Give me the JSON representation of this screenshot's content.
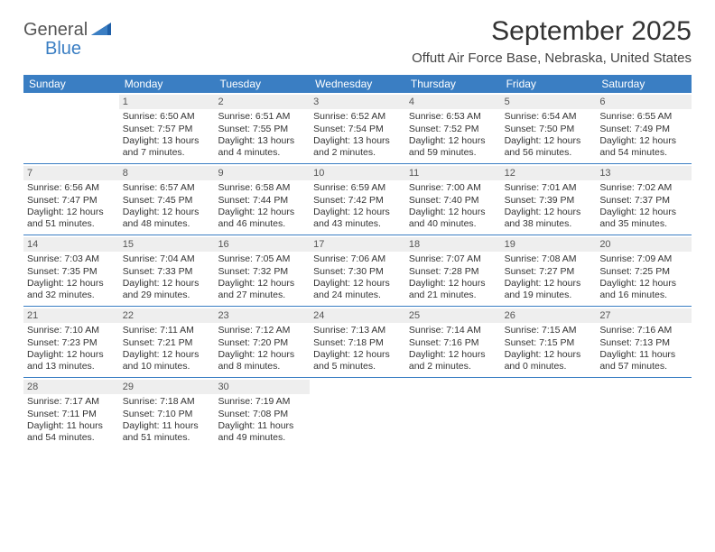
{
  "brand": {
    "word1": "General",
    "word2": "Blue",
    "word1_color": "#555555",
    "word2_color": "#3a7ec3"
  },
  "title": "September 2025",
  "location": "Offutt Air Force Base, Nebraska, United States",
  "colors": {
    "header_bg": "#3a7ec3",
    "header_text": "#ffffff",
    "daynum_bg": "#eeeeee",
    "daynum_text": "#555555",
    "body_text": "#333333",
    "rule": "#3a7ec3",
    "page_bg": "#ffffff"
  },
  "weekday_labels": [
    "Sunday",
    "Monday",
    "Tuesday",
    "Wednesday",
    "Thursday",
    "Friday",
    "Saturday"
  ],
  "weeks": [
    [
      {
        "n": "",
        "lines": []
      },
      {
        "n": "1",
        "lines": [
          "Sunrise: 6:50 AM",
          "Sunset: 7:57 PM",
          "Daylight: 13 hours",
          "and 7 minutes."
        ]
      },
      {
        "n": "2",
        "lines": [
          "Sunrise: 6:51 AM",
          "Sunset: 7:55 PM",
          "Daylight: 13 hours",
          "and 4 minutes."
        ]
      },
      {
        "n": "3",
        "lines": [
          "Sunrise: 6:52 AM",
          "Sunset: 7:54 PM",
          "Daylight: 13 hours",
          "and 2 minutes."
        ]
      },
      {
        "n": "4",
        "lines": [
          "Sunrise: 6:53 AM",
          "Sunset: 7:52 PM",
          "Daylight: 12 hours",
          "and 59 minutes."
        ]
      },
      {
        "n": "5",
        "lines": [
          "Sunrise: 6:54 AM",
          "Sunset: 7:50 PM",
          "Daylight: 12 hours",
          "and 56 minutes."
        ]
      },
      {
        "n": "6",
        "lines": [
          "Sunrise: 6:55 AM",
          "Sunset: 7:49 PM",
          "Daylight: 12 hours",
          "and 54 minutes."
        ]
      }
    ],
    [
      {
        "n": "7",
        "lines": [
          "Sunrise: 6:56 AM",
          "Sunset: 7:47 PM",
          "Daylight: 12 hours",
          "and 51 minutes."
        ]
      },
      {
        "n": "8",
        "lines": [
          "Sunrise: 6:57 AM",
          "Sunset: 7:45 PM",
          "Daylight: 12 hours",
          "and 48 minutes."
        ]
      },
      {
        "n": "9",
        "lines": [
          "Sunrise: 6:58 AM",
          "Sunset: 7:44 PM",
          "Daylight: 12 hours",
          "and 46 minutes."
        ]
      },
      {
        "n": "10",
        "lines": [
          "Sunrise: 6:59 AM",
          "Sunset: 7:42 PM",
          "Daylight: 12 hours",
          "and 43 minutes."
        ]
      },
      {
        "n": "11",
        "lines": [
          "Sunrise: 7:00 AM",
          "Sunset: 7:40 PM",
          "Daylight: 12 hours",
          "and 40 minutes."
        ]
      },
      {
        "n": "12",
        "lines": [
          "Sunrise: 7:01 AM",
          "Sunset: 7:39 PM",
          "Daylight: 12 hours",
          "and 38 minutes."
        ]
      },
      {
        "n": "13",
        "lines": [
          "Sunrise: 7:02 AM",
          "Sunset: 7:37 PM",
          "Daylight: 12 hours",
          "and 35 minutes."
        ]
      }
    ],
    [
      {
        "n": "14",
        "lines": [
          "Sunrise: 7:03 AM",
          "Sunset: 7:35 PM",
          "Daylight: 12 hours",
          "and 32 minutes."
        ]
      },
      {
        "n": "15",
        "lines": [
          "Sunrise: 7:04 AM",
          "Sunset: 7:33 PM",
          "Daylight: 12 hours",
          "and 29 minutes."
        ]
      },
      {
        "n": "16",
        "lines": [
          "Sunrise: 7:05 AM",
          "Sunset: 7:32 PM",
          "Daylight: 12 hours",
          "and 27 minutes."
        ]
      },
      {
        "n": "17",
        "lines": [
          "Sunrise: 7:06 AM",
          "Sunset: 7:30 PM",
          "Daylight: 12 hours",
          "and 24 minutes."
        ]
      },
      {
        "n": "18",
        "lines": [
          "Sunrise: 7:07 AM",
          "Sunset: 7:28 PM",
          "Daylight: 12 hours",
          "and 21 minutes."
        ]
      },
      {
        "n": "19",
        "lines": [
          "Sunrise: 7:08 AM",
          "Sunset: 7:27 PM",
          "Daylight: 12 hours",
          "and 19 minutes."
        ]
      },
      {
        "n": "20",
        "lines": [
          "Sunrise: 7:09 AM",
          "Sunset: 7:25 PM",
          "Daylight: 12 hours",
          "and 16 minutes."
        ]
      }
    ],
    [
      {
        "n": "21",
        "lines": [
          "Sunrise: 7:10 AM",
          "Sunset: 7:23 PM",
          "Daylight: 12 hours",
          "and 13 minutes."
        ]
      },
      {
        "n": "22",
        "lines": [
          "Sunrise: 7:11 AM",
          "Sunset: 7:21 PM",
          "Daylight: 12 hours",
          "and 10 minutes."
        ]
      },
      {
        "n": "23",
        "lines": [
          "Sunrise: 7:12 AM",
          "Sunset: 7:20 PM",
          "Daylight: 12 hours",
          "and 8 minutes."
        ]
      },
      {
        "n": "24",
        "lines": [
          "Sunrise: 7:13 AM",
          "Sunset: 7:18 PM",
          "Daylight: 12 hours",
          "and 5 minutes."
        ]
      },
      {
        "n": "25",
        "lines": [
          "Sunrise: 7:14 AM",
          "Sunset: 7:16 PM",
          "Daylight: 12 hours",
          "and 2 minutes."
        ]
      },
      {
        "n": "26",
        "lines": [
          "Sunrise: 7:15 AM",
          "Sunset: 7:15 PM",
          "Daylight: 12 hours",
          "and 0 minutes."
        ]
      },
      {
        "n": "27",
        "lines": [
          "Sunrise: 7:16 AM",
          "Sunset: 7:13 PM",
          "Daylight: 11 hours",
          "and 57 minutes."
        ]
      }
    ],
    [
      {
        "n": "28",
        "lines": [
          "Sunrise: 7:17 AM",
          "Sunset: 7:11 PM",
          "Daylight: 11 hours",
          "and 54 minutes."
        ]
      },
      {
        "n": "29",
        "lines": [
          "Sunrise: 7:18 AM",
          "Sunset: 7:10 PM",
          "Daylight: 11 hours",
          "and 51 minutes."
        ]
      },
      {
        "n": "30",
        "lines": [
          "Sunrise: 7:19 AM",
          "Sunset: 7:08 PM",
          "Daylight: 11 hours",
          "and 49 minutes."
        ]
      },
      {
        "n": "",
        "lines": []
      },
      {
        "n": "",
        "lines": []
      },
      {
        "n": "",
        "lines": []
      },
      {
        "n": "",
        "lines": []
      }
    ]
  ]
}
